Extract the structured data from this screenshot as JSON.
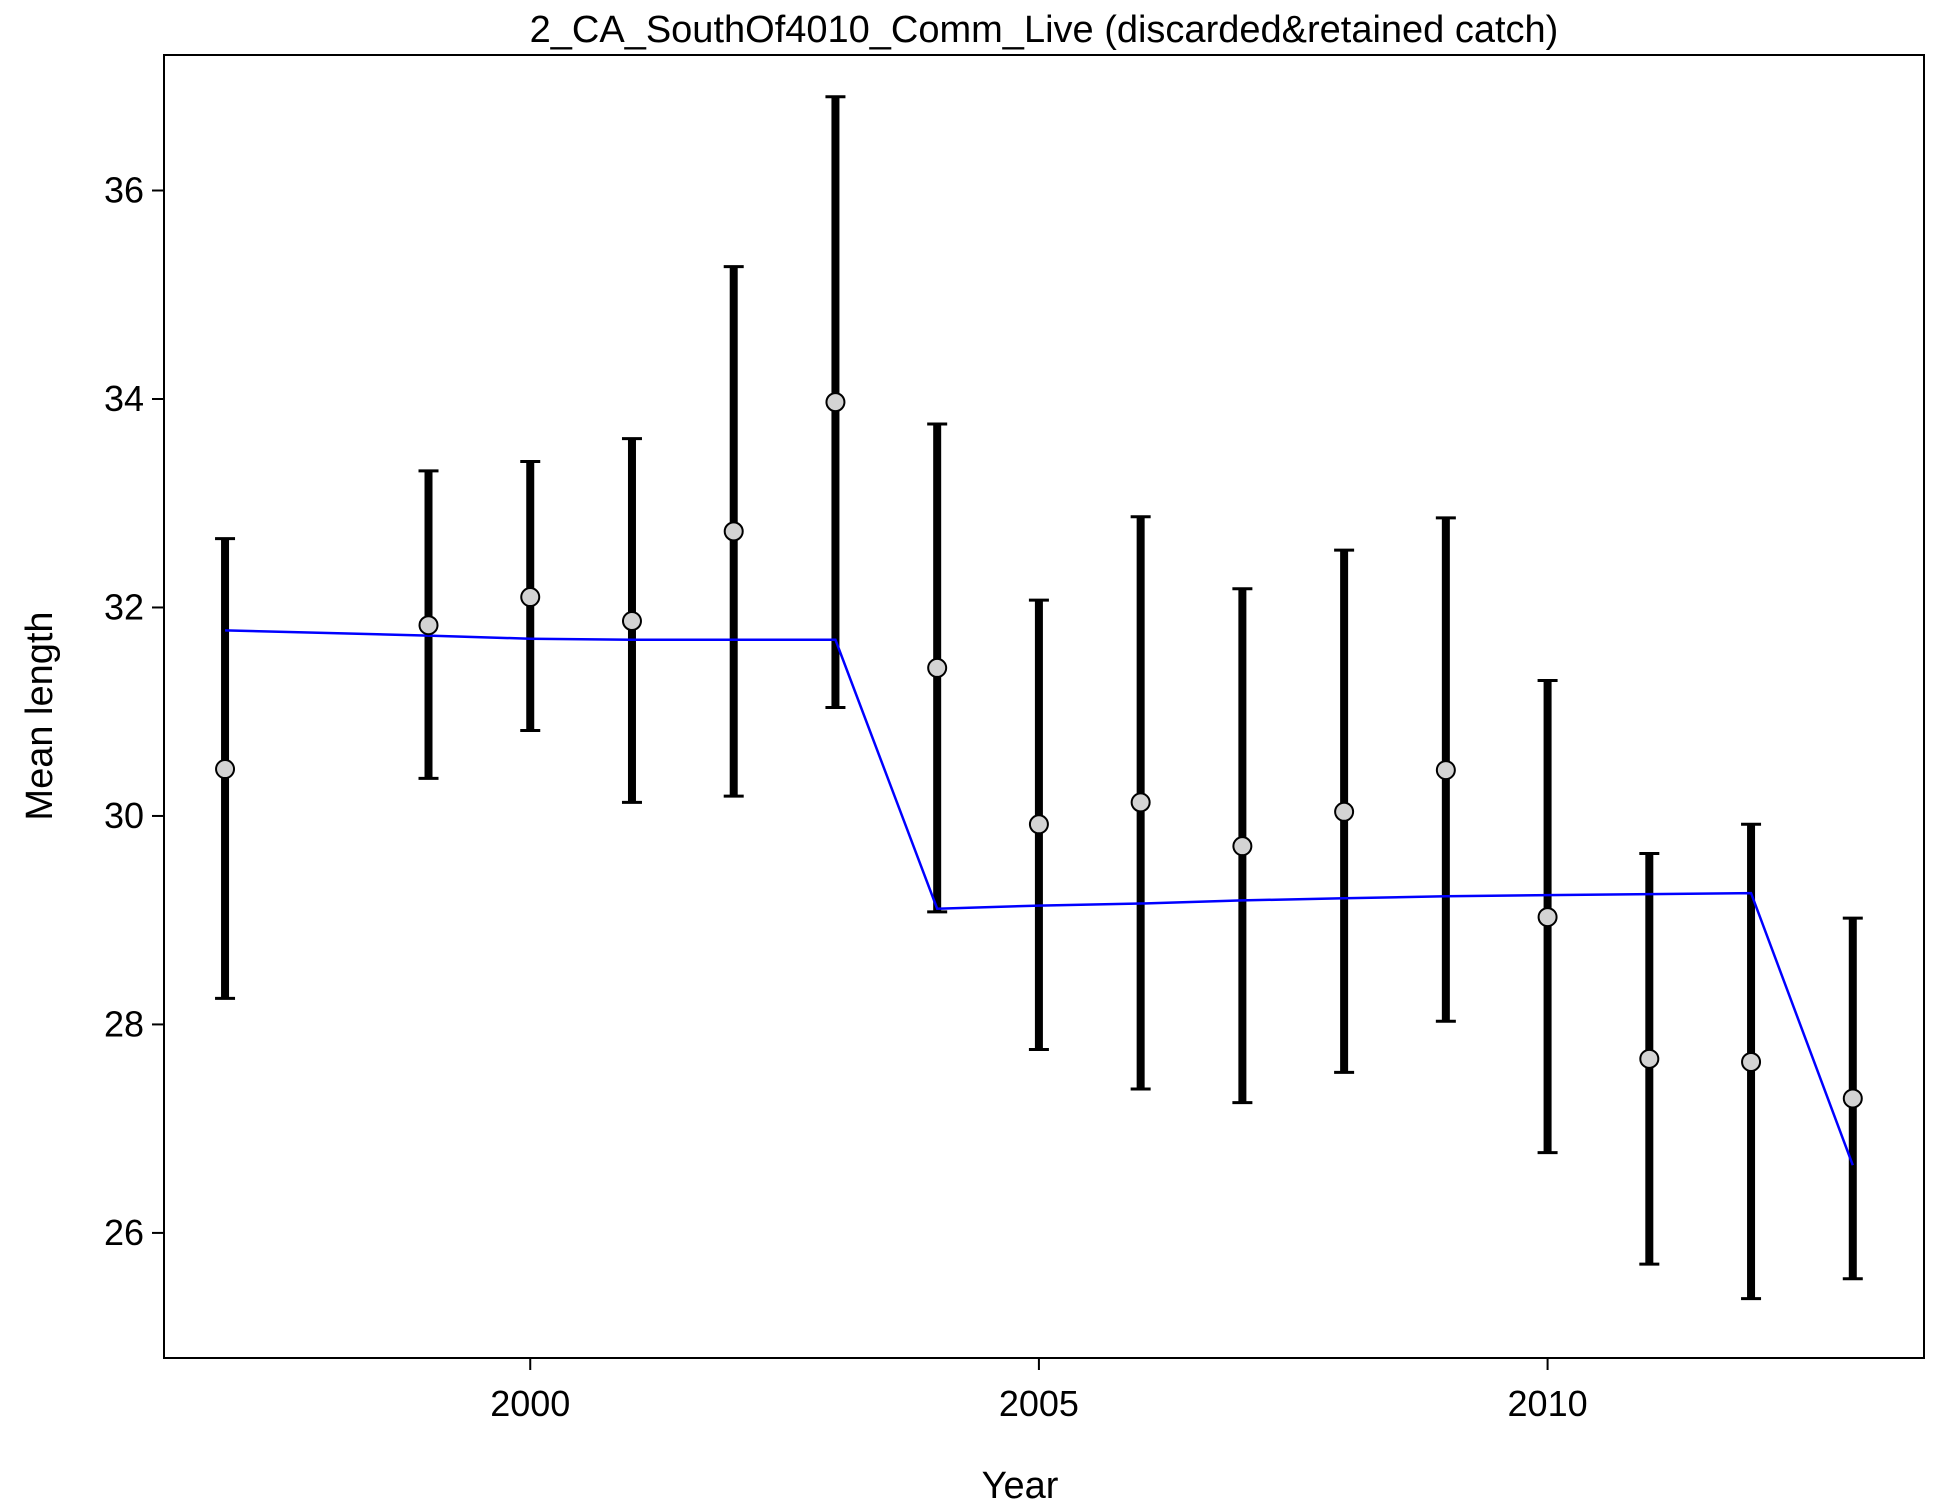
{
  "chart_data": {
    "type": "scatter",
    "title": "2_CA_SouthOf4010_Comm_Live (discarded&retained catch)",
    "xlabel": "Year",
    "ylabel": "Mean length",
    "xlim": [
      1996.4,
      2013.7
    ],
    "ylim": [
      24.8,
      37.3
    ],
    "xticks": [
      2000,
      2005,
      2010
    ],
    "yticks": [
      26,
      28,
      30,
      32,
      34,
      36
    ],
    "grid": false,
    "legend": "none",
    "colors": {
      "points_fill": "#d3d3d3",
      "points_stroke": "#000000",
      "errorbars": "#000000",
      "expected_line": "#0000ff"
    },
    "series": [
      {
        "kind": "observed_points_with_intervals",
        "x": [
          1997,
          1999,
          2000,
          2001,
          2002,
          2003,
          2004,
          2005,
          2006,
          2007,
          2008,
          2009,
          2010,
          2011,
          2012,
          2013
        ],
        "y": [
          30.45,
          31.83,
          32.1,
          31.87,
          32.73,
          33.97,
          31.42,
          29.92,
          30.13,
          29.71,
          30.04,
          30.44,
          29.03,
          27.67,
          27.64,
          27.29
        ],
        "y_low": [
          28.25,
          30.36,
          30.82,
          30.13,
          30.19,
          31.04,
          29.08,
          27.76,
          27.38,
          27.25,
          27.54,
          28.03,
          26.77,
          25.7,
          25.37,
          25.56
        ],
        "y_high": [
          32.66,
          33.31,
          33.4,
          33.62,
          35.27,
          36.9,
          33.76,
          32.07,
          32.87,
          32.18,
          32.55,
          32.86,
          31.3,
          29.64,
          29.92,
          29.02
        ]
      },
      {
        "kind": "expected_line",
        "x": [
          1997,
          1999,
          2000,
          2001,
          2002,
          2003,
          2004,
          2005,
          2006,
          2007,
          2008,
          2009,
          2010,
          2011,
          2012,
          2013
        ],
        "y": [
          31.78,
          31.73,
          31.7,
          31.69,
          31.69,
          31.69,
          29.11,
          29.14,
          29.16,
          29.19,
          29.21,
          29.23,
          29.24,
          29.25,
          29.26,
          26.65
        ]
      }
    ]
  }
}
